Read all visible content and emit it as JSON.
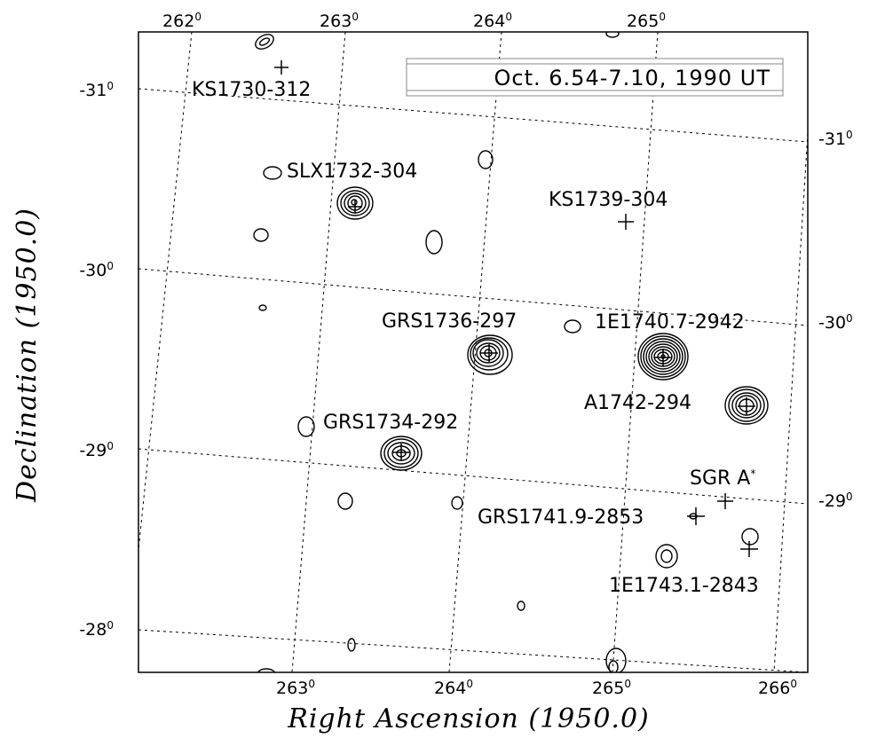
{
  "chart_data": {
    "type": "contour_map",
    "date_label": "Oct. 6.54-7.10, 1990 UT",
    "xlabel": "Right Ascension (1950.0)",
    "ylabel": "Declination (1950.0)",
    "ra_ticks_bottom": [
      "263",
      "264",
      "265",
      "266"
    ],
    "ra_ticks_top": [
      "262",
      "263",
      "264",
      "265"
    ],
    "dec_ticks_left": [
      "-31",
      "-30",
      "-29",
      "-28"
    ],
    "dec_ticks_right": [
      "-31",
      "-30",
      "-29"
    ],
    "degree_mark": "0",
    "grid": true,
    "sources": [
      {
        "name": "KS1730-312",
        "ra": 262.6,
        "dec": -31.15
      },
      {
        "name": "SLX1732-304",
        "ra": 263.35,
        "dec": -30.4
      },
      {
        "name": "KS1739-304",
        "ra": 265.0,
        "dec": -30.45
      },
      {
        "name": "GRS1736-297",
        "ra": 264.1,
        "dec": -29.7
      },
      {
        "name": "1E1740.7-2942",
        "ra": 265.15,
        "dec": -29.72
      },
      {
        "name": "A1742-294",
        "ra": 265.7,
        "dec": -29.5
      },
      {
        "name": "GRS1734-292",
        "ra": 263.55,
        "dec": -29.2
      },
      {
        "name": "SGR A",
        "ra": 265.62,
        "dec": -28.92
      },
      {
        "name": "GRS1741.9-2853",
        "ra": 265.5,
        "dec": -28.85
      },
      {
        "name": "1E1743.1-2843",
        "ra": 265.78,
        "dec": -28.72
      }
    ]
  }
}
